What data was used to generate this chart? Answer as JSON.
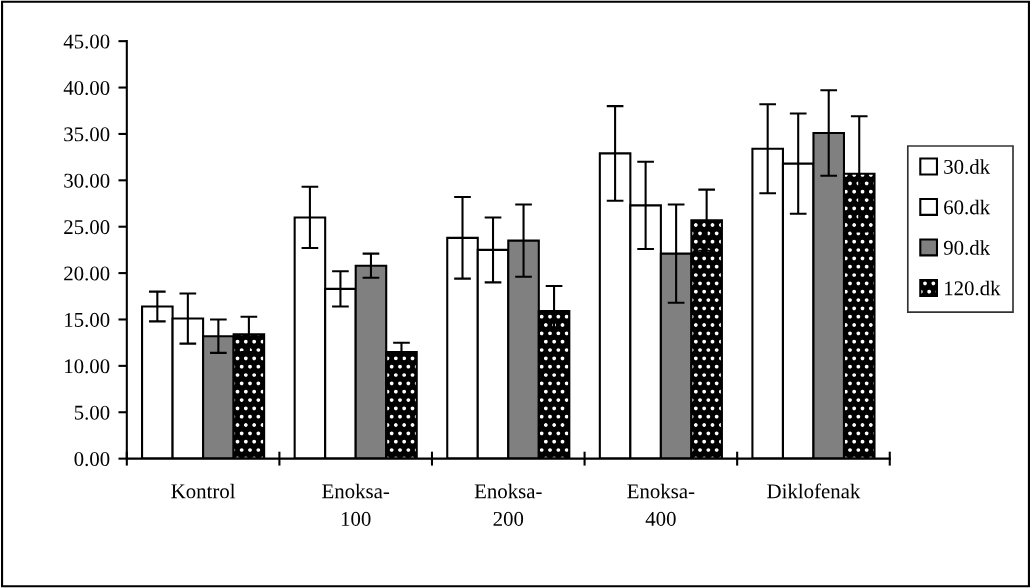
{
  "chart_data": {
    "type": "bar",
    "categories": [
      "Kontrol",
      "Enoksa-\n100",
      "Enoksa-\n200",
      "Enoksa-\n400",
      "Diklofenak"
    ],
    "series": [
      {
        "name": "30.dk",
        "color": "#ffffff",
        "values": [
          16.4,
          26.0,
          23.8,
          32.9,
          33.4
        ],
        "errors": [
          1.6,
          3.3,
          4.4,
          5.1,
          4.8
        ]
      },
      {
        "name": "60.dk",
        "color": "#ffffff",
        "values": [
          15.1,
          18.3,
          22.5,
          27.3,
          31.8
        ],
        "errors": [
          2.7,
          1.9,
          3.5,
          4.7,
          5.4
        ]
      },
      {
        "name": "90.dk",
        "color": "#808080",
        "values": [
          13.2,
          20.8,
          23.5,
          22.1,
          35.1
        ],
        "errors": [
          1.8,
          1.3,
          3.9,
          5.3,
          4.6
        ]
      },
      {
        "name": "120.dk",
        "color": "#000000",
        "values": [
          13.4,
          11.5,
          15.9,
          25.7,
          30.7
        ],
        "errors": [
          1.9,
          1.0,
          2.7,
          3.3,
          6.2
        ]
      }
    ],
    "ylim": [
      0,
      45
    ],
    "yticks": [
      {
        "value": 0,
        "label": "0.00"
      },
      {
        "value": 5,
        "label": "5.00"
      },
      {
        "value": 10,
        "label": "10.00"
      },
      {
        "value": 15,
        "label": "15.00"
      },
      {
        "value": 20,
        "label": "20.00"
      },
      {
        "value": 25,
        "label": "25.00"
      },
      {
        "value": 30,
        "label": "30.00"
      },
      {
        "value": 35,
        "label": "35.00"
      },
      {
        "value": 40,
        "label": "40.00"
      },
      {
        "value": 45,
        "label": "45.00"
      }
    ],
    "grid": false,
    "legend": "right"
  }
}
